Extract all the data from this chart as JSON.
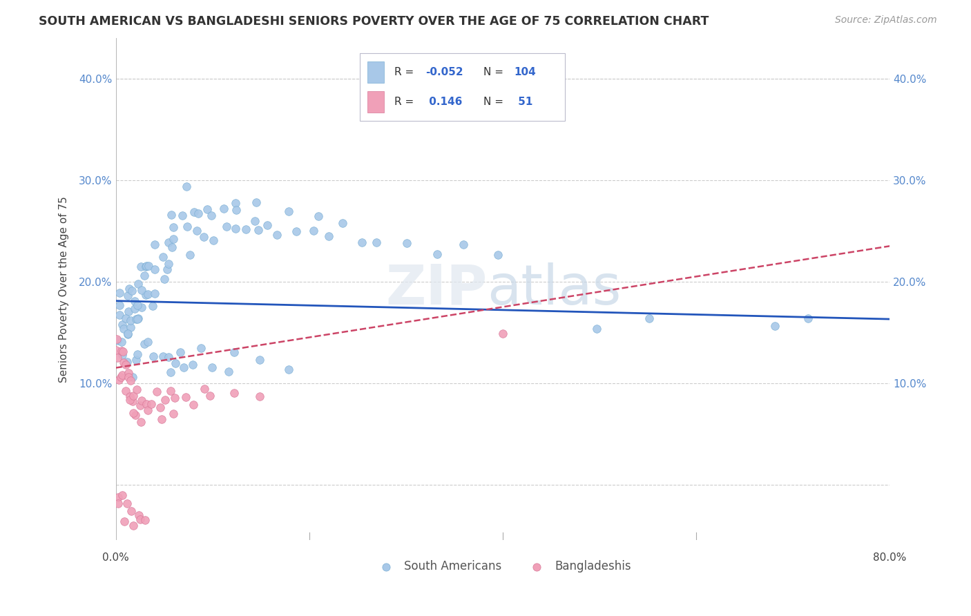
{
  "title": "SOUTH AMERICAN VS BANGLADESHI SENIORS POVERTY OVER THE AGE OF 75 CORRELATION CHART",
  "source": "Source: ZipAtlas.com",
  "ylabel": "Seniors Poverty Over the Age of 75",
  "yticks": [
    0.1,
    0.2,
    0.3,
    0.4
  ],
  "ytick_labels": [
    "10.0%",
    "20.0%",
    "30.0%",
    "40.0%"
  ],
  "xlim": [
    0.0,
    0.8
  ],
  "ylim": [
    -0.055,
    0.44
  ],
  "blue_color": "#A8C8E8",
  "blue_color_edge": "#7BAFD4",
  "pink_color": "#F0A0B8",
  "pink_color_edge": "#D87898",
  "blue_line_color": "#2255BB",
  "pink_line_color": "#CC4466",
  "grid_color": "#CCCCCC",
  "background_color": "#FFFFFF",
  "tick_color": "#5588CC",
  "sa_x": [
    0.002,
    0.003,
    0.004,
    0.005,
    0.006,
    0.007,
    0.008,
    0.009,
    0.01,
    0.011,
    0.012,
    0.013,
    0.014,
    0.015,
    0.016,
    0.017,
    0.018,
    0.019,
    0.02,
    0.021,
    0.022,
    0.023,
    0.024,
    0.025,
    0.026,
    0.027,
    0.028,
    0.029,
    0.03,
    0.031,
    0.033,
    0.035,
    0.037,
    0.039,
    0.04,
    0.042,
    0.044,
    0.046,
    0.048,
    0.05,
    0.052,
    0.055,
    0.058,
    0.06,
    0.063,
    0.065,
    0.068,
    0.07,
    0.073,
    0.075,
    0.078,
    0.08,
    0.085,
    0.09,
    0.095,
    0.1,
    0.105,
    0.11,
    0.115,
    0.12,
    0.125,
    0.13,
    0.135,
    0.14,
    0.145,
    0.15,
    0.16,
    0.17,
    0.18,
    0.19,
    0.2,
    0.21,
    0.22,
    0.23,
    0.25,
    0.27,
    0.3,
    0.33,
    0.36,
    0.4,
    0.01,
    0.015,
    0.02,
    0.025,
    0.03,
    0.035,
    0.04,
    0.045,
    0.05,
    0.055,
    0.06,
    0.065,
    0.07,
    0.08,
    0.09,
    0.1,
    0.11,
    0.12,
    0.15,
    0.18,
    0.5,
    0.55,
    0.68,
    0.72
  ],
  "sa_y": [
    0.155,
    0.145,
    0.16,
    0.14,
    0.18,
    0.13,
    0.155,
    0.175,
    0.165,
    0.145,
    0.17,
    0.185,
    0.155,
    0.195,
    0.165,
    0.14,
    0.175,
    0.185,
    0.16,
    0.19,
    0.175,
    0.16,
    0.195,
    0.185,
    0.21,
    0.175,
    0.195,
    0.165,
    0.19,
    0.205,
    0.22,
    0.185,
    0.215,
    0.195,
    0.225,
    0.21,
    0.24,
    0.2,
    0.215,
    0.23,
    0.245,
    0.22,
    0.255,
    0.27,
    0.235,
    0.25,
    0.265,
    0.235,
    0.255,
    0.29,
    0.245,
    0.26,
    0.275,
    0.24,
    0.265,
    0.26,
    0.245,
    0.27,
    0.245,
    0.26,
    0.275,
    0.265,
    0.255,
    0.275,
    0.265,
    0.255,
    0.26,
    0.245,
    0.27,
    0.245,
    0.255,
    0.265,
    0.24,
    0.255,
    0.245,
    0.235,
    0.24,
    0.225,
    0.235,
    0.22,
    0.12,
    0.115,
    0.13,
    0.125,
    0.14,
    0.135,
    0.125,
    0.13,
    0.12,
    0.115,
    0.13,
    0.12,
    0.125,
    0.115,
    0.13,
    0.115,
    0.12,
    0.125,
    0.13,
    0.12,
    0.155,
    0.16,
    0.155,
    0.16
  ],
  "bd_x": [
    0.001,
    0.002,
    0.003,
    0.004,
    0.005,
    0.006,
    0.007,
    0.008,
    0.009,
    0.01,
    0.011,
    0.012,
    0.013,
    0.014,
    0.015,
    0.016,
    0.017,
    0.018,
    0.019,
    0.02,
    0.022,
    0.024,
    0.026,
    0.028,
    0.03,
    0.033,
    0.036,
    0.04,
    0.044,
    0.048,
    0.052,
    0.056,
    0.06,
    0.065,
    0.07,
    0.08,
    0.09,
    0.1,
    0.12,
    0.15,
    0.003,
    0.005,
    0.007,
    0.009,
    0.012,
    0.015,
    0.018,
    0.022,
    0.026,
    0.032,
    0.4
  ],
  "bd_y": [
    0.13,
    0.12,
    0.14,
    0.11,
    0.13,
    0.1,
    0.12,
    0.11,
    0.13,
    0.12,
    0.09,
    0.11,
    0.1,
    0.08,
    0.09,
    0.1,
    0.08,
    0.09,
    0.07,
    0.08,
    0.09,
    0.08,
    0.07,
    0.09,
    0.08,
    0.07,
    0.08,
    0.09,
    0.08,
    0.07,
    0.08,
    0.09,
    0.07,
    0.08,
    0.09,
    0.08,
    0.09,
    0.08,
    0.09,
    0.08,
    -0.01,
    -0.02,
    -0.01,
    -0.03,
    -0.02,
    -0.03,
    -0.04,
    -0.03,
    -0.04,
    -0.03,
    0.155
  ],
  "sa_line_x0": 0.0,
  "sa_line_x1": 0.8,
  "sa_line_y0": 0.181,
  "sa_line_y1": 0.163,
  "bd_line_x0": 0.0,
  "bd_line_x1": 0.8,
  "bd_line_y0": 0.115,
  "bd_line_y1": 0.235
}
